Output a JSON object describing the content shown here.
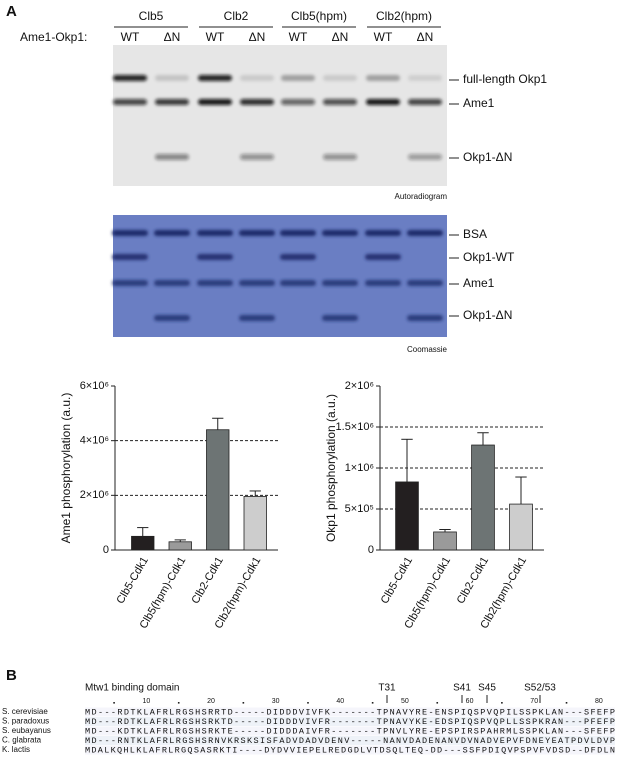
{
  "panel_a": {
    "label": "A",
    "groups": [
      "Clb5",
      "Clb2",
      "Clb5(hpm)",
      "Clb2(hpm)"
    ],
    "row_label": "Ame1-Okp1:",
    "lanes": [
      "WT",
      "ΔN",
      "WT",
      "ΔN",
      "WT",
      "ΔN",
      "WT",
      "ΔN"
    ],
    "autoradiogram": {
      "bands": [
        "full-length Okp1",
        "Ame1",
        "Okp1-ΔN"
      ],
      "caption": "Autoradiogram"
    },
    "coomassie": {
      "bands": [
        "BSA",
        "Okp1-WT",
        "Ame1",
        "Okp1-ΔN"
      ],
      "caption": "Coomassie"
    }
  },
  "chart_data": [
    {
      "type": "bar",
      "y_label": "Ame1 phosphorylation (a.u.)",
      "categories": [
        "Clb5-Cdk1",
        "Clb5(hpm)-Cdk1",
        "Clb2-Cdk1",
        "Clb2(hpm)-Cdk1"
      ],
      "values": [
        500000,
        300000,
        4400000,
        1960000
      ],
      "errors": [
        320000,
        70000,
        420000,
        200000
      ],
      "colors": [
        "#231f20",
        "#9a9a9a",
        "#6d7474",
        "#cdcdcd"
      ],
      "ylim": [
        0,
        6000000
      ],
      "yticks": [
        0,
        {
          "value": 2000000,
          "label": "2×10⁶"
        },
        {
          "value": 4000000,
          "label": "4×10⁶"
        },
        {
          "value": 6000000,
          "label": "6×10⁶"
        }
      ],
      "grid": true
    },
    {
      "type": "bar",
      "y_label": "Okp1 phosphorylation (a.u.)",
      "categories": [
        "Clb5-Cdk1",
        "Clb5(hpm)-Cdk1",
        "Clb2-Cdk1",
        "Clb2(hpm)-Cdk1"
      ],
      "values": [
        830000,
        220000,
        1280000,
        560000
      ],
      "errors": [
        520000,
        30000,
        150000,
        330000
      ],
      "colors": [
        "#231f20",
        "#9a9a9a",
        "#6d7474",
        "#cdcdcd"
      ],
      "ylim": [
        0,
        2000000
      ],
      "yticks": [
        0,
        {
          "value": 500000,
          "label": "5×10⁵"
        },
        {
          "value": 1000000,
          "label": "1×10⁶"
        },
        {
          "value": 1500000,
          "label": "1.5×10⁶"
        },
        {
          "value": 2000000,
          "label": "2×10⁶"
        }
      ],
      "grid": true
    }
  ],
  "panel_b": {
    "label": "B",
    "domain_label": "Mtw1 binding domain",
    "sites": [
      "T31",
      "S41",
      "S45",
      "S52/53"
    ],
    "ruler": [
      10,
      20,
      30,
      40,
      50,
      60,
      70,
      80
    ],
    "sequences": [
      {
        "species": "S. cerevisiae",
        "sequence": "MD---RDTKLAFRLRGSHSRRTD-----DIDDDVIVFK-------TPNAVYRE-ENSPIQSPVQPILSSPKLAN---SFEFP"
      },
      {
        "species": "S. paradoxus",
        "sequence": "MD---RDTKLAFRLRGSHSRKTD-----DIDDDVIVFR-------TPNAVYKE-EDSPIQSPVQPLLSSPKRAN---PFEFP"
      },
      {
        "species": "S. eubayanus",
        "sequence": "MD---KDTKLAFRLRGSHSRKTE-----DIDDDAIVFR-------TPNVLYRE-EPSPIRSPAHRMLSSPKLAN---SFEFP"
      },
      {
        "species": "C. glabrata",
        "sequence": "MD---RNTKLAFRLRGSHSRNVKRSKSISFADVDADVDENV-----NANVDADENANVDVNADVEPVFDNEYEATPDVLDVP"
      },
      {
        "species": "K. lactis",
        "sequence": "MDALKQHLKLAFRLRGQSASRKTI----DYDVVIEPELREDGDLVTDSQLTEQ-DD---SSFPDIQVPSPVFVDSD--DFDLN"
      }
    ]
  }
}
